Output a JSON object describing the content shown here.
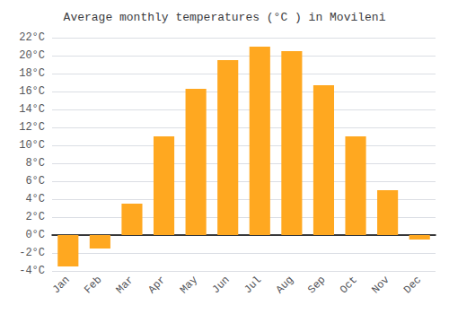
{
  "chart_data": {
    "type": "bar",
    "title": "Average monthly temperatures (°C ) in Movileni",
    "categories": [
      "Jan",
      "Feb",
      "Mar",
      "Apr",
      "May",
      "Jun",
      "Jul",
      "Aug",
      "Sep",
      "Oct",
      "Nov",
      "Dec"
    ],
    "values": [
      -3.5,
      -1.5,
      3.5,
      11.0,
      16.3,
      19.5,
      21.0,
      20.5,
      16.7,
      11.0,
      5.0,
      -0.5
    ],
    "color": "#FFA820",
    "ylim": [
      -4,
      22
    ],
    "yticks": [
      {
        "value": -4,
        "label": "-4°C"
      },
      {
        "value": -2,
        "label": "-2°C"
      },
      {
        "value": 0,
        "label": "0°C"
      },
      {
        "value": 2,
        "label": "2°C"
      },
      {
        "value": 4,
        "label": "4°C"
      },
      {
        "value": 6,
        "label": "6°C"
      },
      {
        "value": 8,
        "label": "8°C"
      },
      {
        "value": 10,
        "label": "10°C"
      },
      {
        "value": 12,
        "label": "12°C"
      },
      {
        "value": 14,
        "label": "14°C"
      },
      {
        "value": 16,
        "label": "16°C"
      },
      {
        "value": 18,
        "label": "18°C"
      },
      {
        "value": 20,
        "label": "20°C"
      },
      {
        "value": 22,
        "label": "22°C"
      }
    ],
    "grid": true
  }
}
